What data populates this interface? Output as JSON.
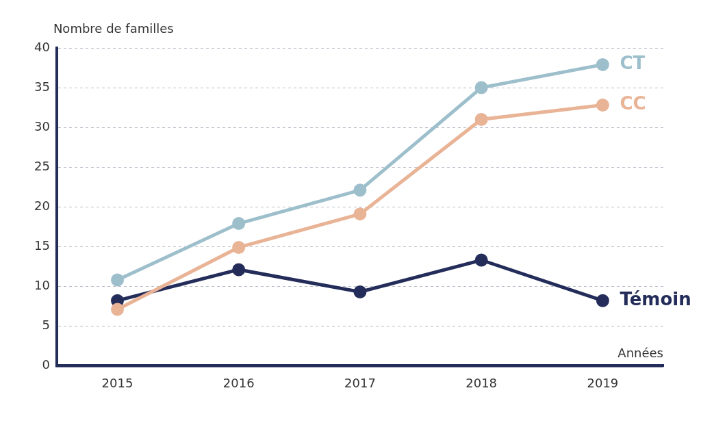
{
  "chart_data": {
    "type": "line",
    "x_label": "Années",
    "y_label": "Nombre de familles",
    "categories": [
      "2015",
      "2016",
      "2017",
      "2018",
      "2019"
    ],
    "series": [
      {
        "name": "CT",
        "color": "#9dbfcb",
        "values": [
          10.8,
          17.9,
          22.1,
          35.0,
          37.9
        ]
      },
      {
        "name": "CC",
        "color": "#e9b396",
        "values": [
          7.1,
          14.9,
          19.1,
          31.0,
          32.8
        ]
      },
      {
        "name": "Témoin",
        "color": "#242d5a",
        "values": [
          8.2,
          12.1,
          9.3,
          13.3,
          8.2
        ]
      }
    ],
    "ylim": [
      0,
      40
    ],
    "yticks": [
      0,
      5,
      10,
      15,
      20,
      25,
      30,
      35,
      40
    ],
    "grid": true,
    "marker": "circle"
  }
}
